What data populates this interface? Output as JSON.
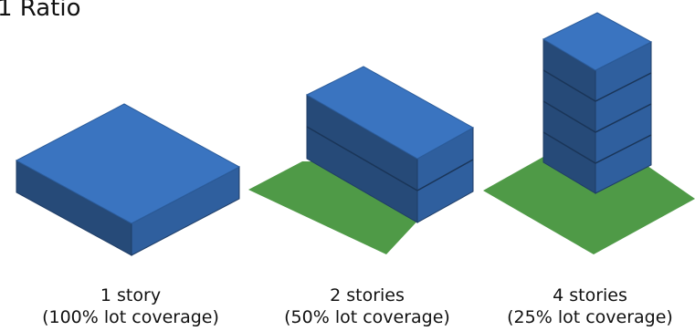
{
  "title": "1 Ratio",
  "colors": {
    "top": "#3a74c0",
    "left": "#264a78",
    "right": "#2f5f9e",
    "edge": "#1f3d66",
    "lot": "#4f9a47",
    "text": "#111111"
  },
  "panels": [
    {
      "name": "1 story",
      "line1": "1 story",
      "line2": "(100% lot coverage)",
      "stories": 1,
      "coverage_percent": 100
    },
    {
      "name": "2 stories",
      "line1": "2 stories",
      "line2": "(50% lot coverage)",
      "stories": 2,
      "coverage_percent": 50
    },
    {
      "name": "4 stories",
      "line1": "4 stories",
      "line2": "(25% lot coverage)",
      "stories": 4,
      "coverage_percent": 25
    }
  ]
}
